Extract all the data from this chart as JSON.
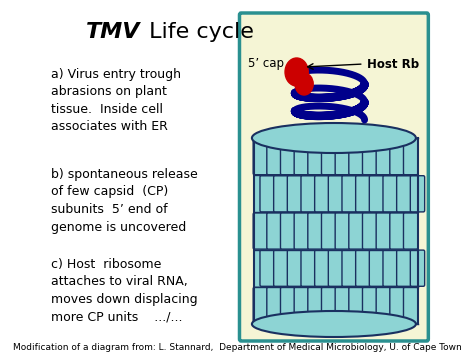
{
  "title_italic": "TMV",
  "title_normal": " Life cycle",
  "title_fontsize": 16,
  "bg_color": "#ffffff",
  "box_bg": "#f5f5d5",
  "box_border": "#2a9090",
  "text_a": "a) Virus entry trough\nabrasions on plant\ntissue.  Inside cell\nassociates with ER",
  "text_b": "b) spontaneous release\nof few capsid  (CP)\nsubunits  5’ end of\ngenome is uncovered",
  "text_c": "c) Host  ribosome\nattaches to viral RNA,\nmoves down displacing\nmore CP units    .../...",
  "caption": "Modification of a diagram from: L. Stannard,  Department of Medical Microbiology, U. of Cape Town",
  "capsid_color": "#8dd4d4",
  "capsid_border": "#1a3060",
  "rna_color": "#00008b",
  "ribosome_color": "#cc0000",
  "label_5cap": "5’ cap",
  "label_hostRb": "Host Rb",
  "text_fontsize": 9,
  "caption_fontsize": 6.5,
  "figw": 4.74,
  "figh": 3.55,
  "dpi": 100
}
